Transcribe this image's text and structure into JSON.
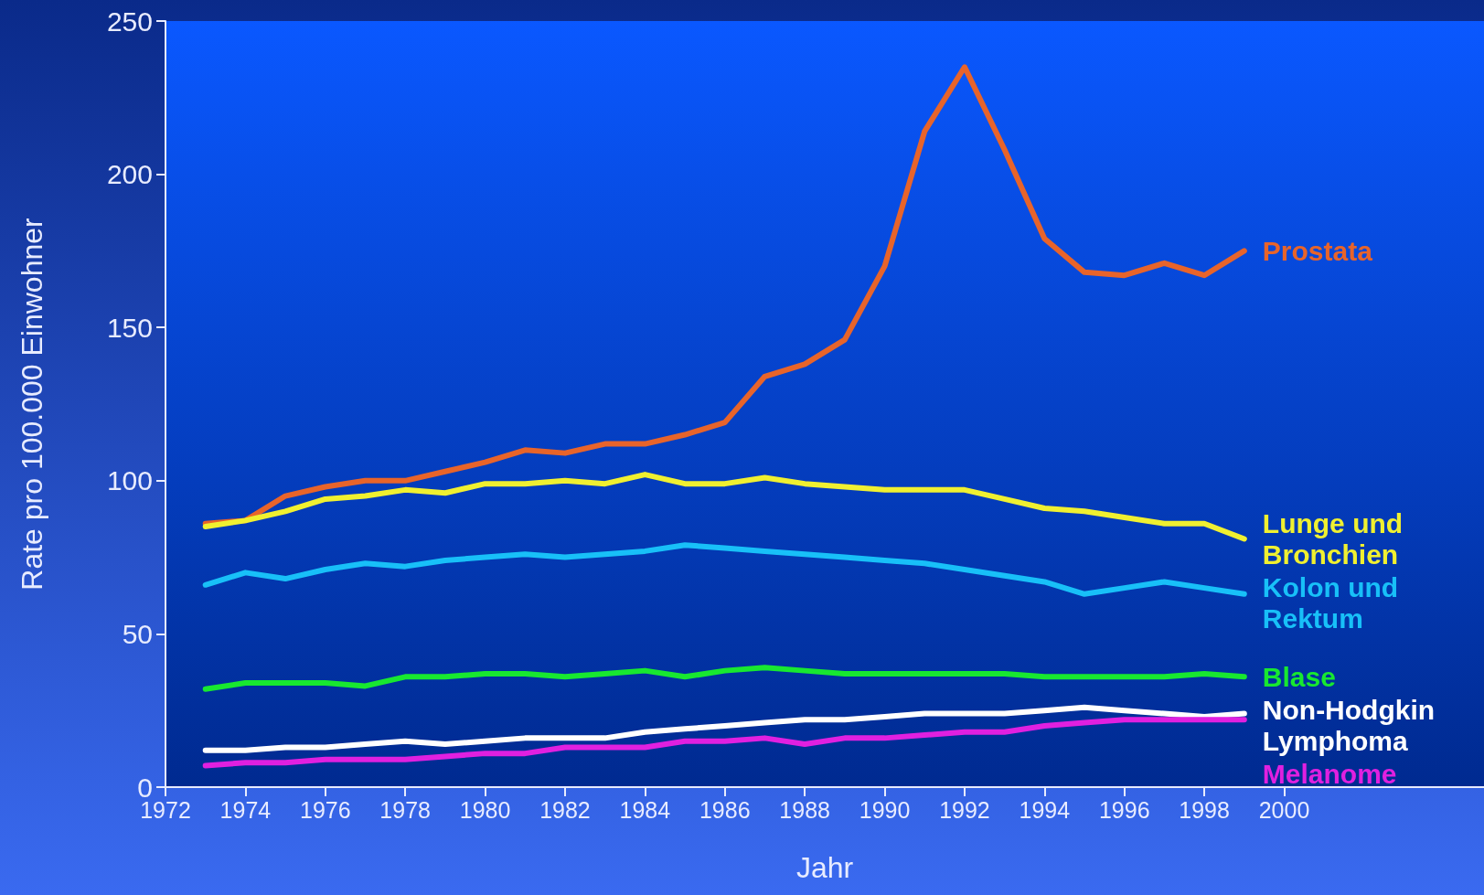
{
  "chart_data": {
    "type": "line",
    "xlabel": "Jahr",
    "ylabel": "Rate pro 100.000 Einwohner",
    "x": [
      1973,
      1974,
      1975,
      1976,
      1977,
      1978,
      1979,
      1980,
      1981,
      1982,
      1983,
      1984,
      1985,
      1986,
      1987,
      1988,
      1989,
      1990,
      1991,
      1992,
      1993,
      1994,
      1995,
      1996,
      1997,
      1998,
      1999
    ],
    "xlim": [
      1972,
      2005
    ],
    "xticks": [
      1972,
      1974,
      1976,
      1978,
      1980,
      1982,
      1984,
      1986,
      1988,
      1990,
      1992,
      1994,
      1996,
      1998,
      2000
    ],
    "ylim": [
      0,
      250
    ],
    "yticks": [
      0,
      50,
      100,
      150,
      200,
      250
    ],
    "grid": false,
    "legend": false,
    "marker": "none",
    "line_style": "solid",
    "series": [
      {
        "name": "Prostata",
        "color": "#e8642a",
        "values": [
          86,
          87,
          95,
          98,
          100,
          100,
          103,
          106,
          110,
          109,
          112,
          112,
          115,
          119,
          134,
          138,
          146,
          170,
          214,
          235,
          208,
          179,
          168,
          167,
          171,
          167,
          175
        ]
      },
      {
        "name": "Lunge und Bronchien",
        "color": "#f0f030",
        "values": [
          85,
          87,
          90,
          94,
          95,
          97,
          96,
          99,
          99,
          100,
          99,
          102,
          99,
          99,
          101,
          99,
          98,
          97,
          97,
          97,
          94,
          91,
          90,
          88,
          86,
          86,
          81
        ]
      },
      {
        "name": "Kolon und Rektum",
        "color": "#18c0f8",
        "values": [
          66,
          70,
          68,
          71,
          73,
          72,
          74,
          75,
          76,
          75,
          76,
          77,
          79,
          78,
          77,
          76,
          75,
          74,
          73,
          71,
          69,
          67,
          63,
          65,
          67,
          65,
          63
        ]
      },
      {
        "name": "Blase",
        "color": "#18e830",
        "values": [
          32,
          34,
          34,
          34,
          33,
          36,
          36,
          37,
          37,
          36,
          37,
          38,
          36,
          38,
          39,
          38,
          37,
          37,
          37,
          37,
          37,
          36,
          36,
          36,
          36,
          37,
          36
        ]
      },
      {
        "name": "Non-Hodgkin Lymphoma",
        "color": "#ffffff",
        "values": [
          12,
          12,
          13,
          13,
          14,
          15,
          14,
          15,
          16,
          16,
          16,
          18,
          19,
          20,
          21,
          22,
          22,
          23,
          24,
          24,
          24,
          25,
          26,
          25,
          24,
          23,
          24
        ]
      },
      {
        "name": "Melanome",
        "color": "#e020e0",
        "values": [
          7,
          8,
          8,
          9,
          9,
          9,
          10,
          11,
          11,
          13,
          13,
          13,
          15,
          15,
          16,
          14,
          16,
          16,
          17,
          18,
          18,
          20,
          21,
          22,
          22,
          22,
          22
        ]
      }
    ]
  }
}
